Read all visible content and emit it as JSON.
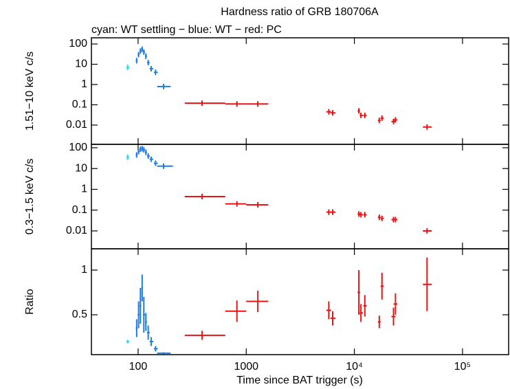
{
  "chart_data": [
    {
      "type": "scatter",
      "title": "Hardness ratio of GRB 180706A",
      "subtitle": "cyan: WT settling − blue: WT − red: PC",
      "ylabel": "1.51−10 keV c/s",
      "log_y": true,
      "log_x": true,
      "xlim": [
        37,
        267000
      ],
      "xticks": [
        100,
        1000,
        {
          "value": 10000,
          "label": "10⁴"
        },
        {
          "value": 100000,
          "label": "10⁵"
        }
      ],
      "ylim": [
        0.00112,
        202
      ],
      "yticks": [
        100,
        10,
        1,
        0.1,
        0.01
      ],
      "series": [
        {
          "color": "#22ddee",
          "x": [
            80
          ],
          "x_low": [
            78
          ],
          "x_high": [
            83
          ],
          "values": [
            7
          ]
        },
        {
          "color": "#1e7be0",
          "x": [
            97,
            101,
            105,
            109,
            113,
            118,
            124,
            132,
            145,
            172
          ],
          "x_low": [
            95,
            99,
            103,
            107,
            111,
            116,
            121,
            128,
            140,
            150
          ],
          "x_high": [
            99,
            103,
            107,
            111,
            116,
            121,
            128,
            138,
            152,
            200
          ],
          "values": [
            15,
            30,
            45,
            55,
            40,
            25,
            12,
            6,
            4,
            0.8
          ]
        },
        {
          "color": "#ee1111",
          "x": [
            390,
            820,
            1280,
            5800,
            6300,
            11000,
            11500,
            12500,
            17000,
            18000,
            23000,
            24000,
            47000
          ],
          "x_low": [
            270,
            640,
            1000,
            5500,
            6000,
            10700,
            11200,
            12100,
            16500,
            17500,
            22000,
            23000,
            43000
          ],
          "x_high": [
            640,
            1000,
            1600,
            6100,
            6700,
            11300,
            12000,
            13000,
            17500,
            18700,
            24000,
            25000,
            52000
          ],
          "values": [
            0.12,
            0.11,
            0.11,
            0.045,
            0.04,
            0.05,
            0.03,
            0.03,
            0.017,
            0.022,
            0.015,
            0.018,
            0.008
          ]
        }
      ]
    },
    {
      "type": "scatter",
      "ylabel": "0.3−1.5 keV c/s",
      "log_y": true,
      "log_x": true,
      "xlim": [
        37,
        267000
      ],
      "xticks": [
        100,
        1000,
        {
          "value": 10000,
          "label": "10⁴"
        },
        {
          "value": 100000,
          "label": "10⁵"
        }
      ],
      "ylim": [
        0.00138,
        146
      ],
      "yticks": [
        100,
        10,
        1,
        0.1,
        0.01
      ],
      "series": [
        {
          "color": "#22ddee",
          "x": [
            80
          ],
          "x_low": [
            78
          ],
          "x_high": [
            83
          ],
          "values": [
            35
          ]
        },
        {
          "color": "#1e7be0",
          "x": [
            97,
            101,
            105,
            109,
            113,
            118,
            124,
            132,
            145,
            172
          ],
          "x_low": [
            95,
            99,
            103,
            107,
            111,
            116,
            121,
            128,
            140,
            150
          ],
          "x_high": [
            99,
            103,
            107,
            111,
            116,
            121,
            128,
            138,
            152,
            210
          ],
          "values": [
            45,
            65,
            85,
            90,
            80,
            60,
            40,
            28,
            18,
            13
          ]
        },
        {
          "color": "#ee1111",
          "x": [
            390,
            820,
            1280,
            5800,
            6300,
            11000,
            11500,
            12500,
            17000,
            18000,
            23000,
            24000,
            47000
          ],
          "x_low": [
            270,
            640,
            1000,
            5500,
            6000,
            10700,
            11200,
            12100,
            16500,
            17500,
            22000,
            23000,
            43000
          ],
          "x_high": [
            640,
            1000,
            1600,
            6100,
            6700,
            11300,
            12000,
            13000,
            17500,
            18700,
            24000,
            25000,
            52000
          ],
          "values": [
            0.45,
            0.2,
            0.18,
            0.08,
            0.08,
            0.065,
            0.06,
            0.06,
            0.045,
            0.04,
            0.035,
            0.035,
            0.01
          ]
        }
      ]
    },
    {
      "type": "scatter",
      "ylabel": "Ratio",
      "xlabel": "Time since BAT trigger (s)",
      "log_y": false,
      "log_x": true,
      "xlim": [
        37,
        267000
      ],
      "xticks": [
        100,
        1000,
        {
          "value": 10000,
          "label": "10⁴"
        },
        {
          "value": 100000,
          "label": "10⁵"
        }
      ],
      "ylim": [
        0.054,
        1.238
      ],
      "yticks": [
        1,
        0.5
      ],
      "series": [
        {
          "color": "#22ddee",
          "x": [
            80
          ],
          "x_low": [
            78
          ],
          "x_high": [
            83
          ],
          "values": [
            0.2
          ],
          "errors": [
            0.02
          ]
        },
        {
          "color": "#1e7be0",
          "x": [
            97,
            101,
            105,
            109,
            113,
            118,
            124,
            132,
            145,
            172
          ],
          "x_low": [
            95,
            99,
            103,
            107,
            111,
            116,
            121,
            128,
            140,
            150
          ],
          "x_high": [
            99,
            103,
            107,
            111,
            116,
            121,
            128,
            138,
            152,
            200
          ],
          "values": [
            0.35,
            0.5,
            0.6,
            0.8,
            0.5,
            0.42,
            0.3,
            0.2,
            0.12,
            0.07
          ],
          "errors": [
            0.1,
            0.15,
            0.2,
            0.15,
            0.2,
            0.1,
            0.08,
            0.05,
            0.03,
            0.01
          ]
        },
        {
          "color": "#ee1111",
          "x": [
            390,
            820,
            1280,
            5800,
            6300,
            11000,
            11500,
            12500,
            17000,
            18000,
            23000,
            24000,
            47000
          ],
          "x_low": [
            270,
            640,
            1000,
            5500,
            6000,
            10700,
            11200,
            12100,
            16500,
            17500,
            22000,
            23000,
            43000
          ],
          "x_high": [
            640,
            1000,
            1600,
            6100,
            6700,
            11300,
            12000,
            13000,
            17500,
            18700,
            24000,
            25000,
            52000
          ],
          "values": [
            0.27,
            0.54,
            0.65,
            0.55,
            0.46,
            0.75,
            0.52,
            0.6,
            0.42,
            0.82,
            0.48,
            0.62,
            0.84
          ],
          "errors": [
            0.05,
            0.12,
            0.12,
            0.1,
            0.08,
            0.25,
            0.1,
            0.12,
            0.07,
            0.15,
            0.1,
            0.12,
            0.3
          ]
        }
      ]
    }
  ]
}
